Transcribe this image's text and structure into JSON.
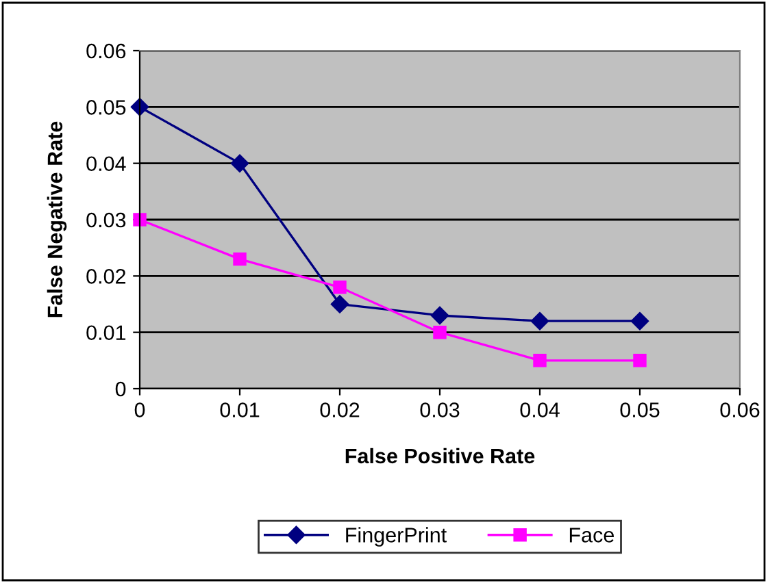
{
  "chart_data": {
    "type": "line",
    "xlabel": "False Positive Rate",
    "ylabel": "False Negative Rate",
    "x": [
      0,
      0.01,
      0.02,
      0.03,
      0.04,
      0.05
    ],
    "series": [
      {
        "name": "FingerPrint",
        "color": "#000080",
        "marker": "diamond",
        "values": [
          0.05,
          0.04,
          0.015,
          0.013,
          0.012,
          0.012
        ]
      },
      {
        "name": "Face",
        "color": "#ff00ff",
        "marker": "square",
        "values": [
          0.03,
          0.023,
          0.018,
          0.01,
          0.005,
          0.005
        ]
      }
    ],
    "xlim": [
      0,
      0.06
    ],
    "xticks": [
      0,
      0.01,
      0.02,
      0.03,
      0.04,
      0.05,
      0.06
    ],
    "ylim": [
      0,
      0.06
    ],
    "yticks": [
      0,
      0.01,
      0.02,
      0.03,
      0.04,
      0.05,
      0.06
    ],
    "grid": "y",
    "legend": "bottom",
    "line_style": "solid"
  }
}
